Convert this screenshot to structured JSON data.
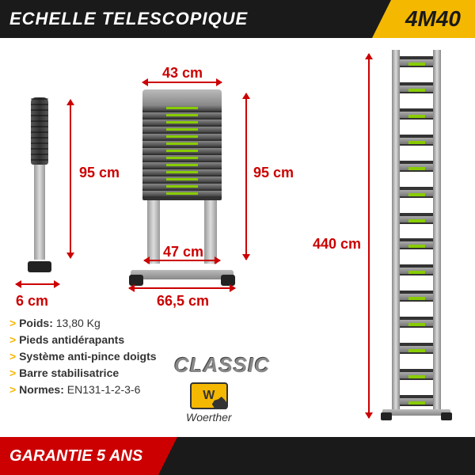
{
  "header": {
    "title": "ECHELLE TELESCOPIQUE",
    "badge": "4M40"
  },
  "dimensions": {
    "folded_height": "95 cm",
    "folded_width": "6 cm",
    "collapsed_height": "95 cm",
    "collapsed_top_width": "43 cm",
    "collapsed_inner_width": "47 cm",
    "collapsed_base_width": "66,5 cm",
    "extended_height": "440 cm"
  },
  "specs": [
    {
      "label": "Poids:",
      "value": " 13,80 Kg"
    },
    {
      "label": "Pieds antidérapants",
      "value": ""
    },
    {
      "label": "Système anti-pince doigts",
      "value": ""
    },
    {
      "label": "Barre stabilisatrice",
      "value": ""
    },
    {
      "label": "Normes:",
      "value": " EN131-1-2-3-6"
    }
  ],
  "classic_label": "CLASSIC",
  "brand": {
    "letter": "W",
    "name": "Woerther"
  },
  "warranty": "GARANTIE 5 ANS",
  "colors": {
    "header_bg": "#1a1a1a",
    "badge_bg": "#f5b800",
    "dim_color": "#c00",
    "warranty_bg": "#c00"
  },
  "ladder": {
    "collapsed_rungs": 13,
    "extended_rungs": 14
  }
}
